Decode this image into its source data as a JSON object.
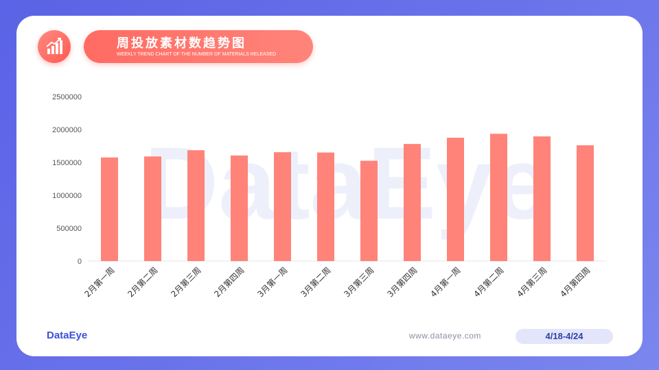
{
  "header": {
    "title": "周投放素材数趋势图",
    "subtitle": "WEEKLY TREND CHART OF THE NUMBER OF MATERIALS RELEASED",
    "icon": "bar-chart-trend-icon",
    "accent_color": "#ff6b63"
  },
  "watermark": "DataEye",
  "footer": {
    "brand": "DataEye",
    "website": "www.dataeye.com",
    "date_range": "4/18-4/24"
  },
  "chart_data": {
    "type": "bar",
    "title": "",
    "xlabel": "",
    "ylabel": "",
    "categories": [
      "2月第一周",
      "2月第二周",
      "2月第三周",
      "2月第四周",
      "3月第一周",
      "3月第二周",
      "3月第三周",
      "3月第四周",
      "4月第一周",
      "4月第二周",
      "4月第三周",
      "4月第四周"
    ],
    "values": [
      1575000,
      1590000,
      1685000,
      1605000,
      1655000,
      1650000,
      1525000,
      1780000,
      1875000,
      1935000,
      1895000,
      1760000
    ],
    "ylim": [
      0,
      2500000
    ],
    "yticks": [
      0,
      500000,
      1000000,
      1500000,
      2000000,
      2500000
    ],
    "bar_color": "#ff8378",
    "grid": false
  }
}
